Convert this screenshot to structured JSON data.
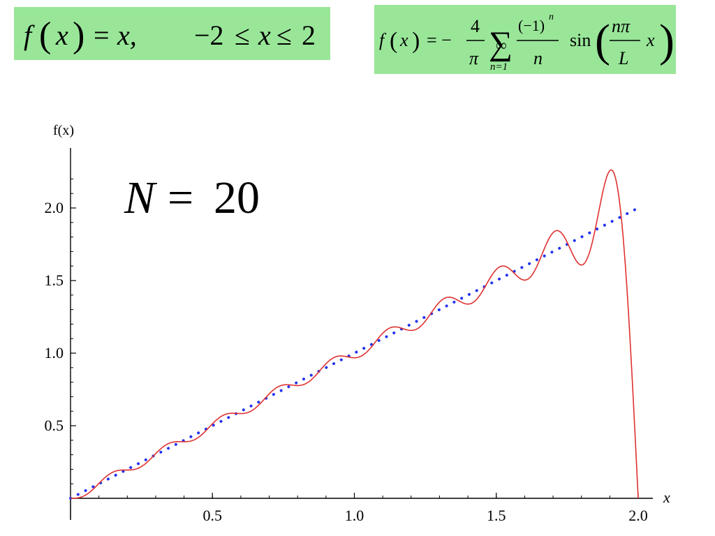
{
  "formula_left": {
    "lhs_fn": "f",
    "lhs_var": "x",
    "eq": "=",
    "rhs": "x,",
    "domain_left": "−2",
    "leq1": "≤",
    "domain_var": "x",
    "leq2": "≤",
    "domain_right": "2",
    "bg_color": "#99e699"
  },
  "formula_right": {
    "fn": "f",
    "var": "x",
    "eq": "= −",
    "coef_num": "4",
    "coef_den": "π",
    "sum_sym": "∑",
    "sum_upper": "∞",
    "sum_lower": "n=1",
    "term_num": "(−1)",
    "term_num_exp": "n",
    "term_den": "n",
    "sin": "sin",
    "arg_num": "nπ",
    "arg_den": "L",
    "arg_var": "x",
    "bg_color": "#99e699"
  },
  "annotation": {
    "lhs": "N",
    "eq": "=",
    "value": "20"
  },
  "chart_data": {
    "type": "line",
    "title": "",
    "xlabel": "x",
    "ylabel": "f(x)",
    "xlim": [
      0,
      2.0
    ],
    "ylim": [
      0,
      2.3
    ],
    "x_ticks": [
      0.5,
      1.0,
      1.5,
      2.0
    ],
    "x_tick_labels": [
      "0.5",
      "1.0",
      "1.5",
      "2.0"
    ],
    "y_ticks": [
      0.5,
      1.0,
      1.5,
      2.0
    ],
    "y_tick_labels": [
      "0.5",
      "1.0",
      "1.5",
      "2.0"
    ],
    "grid": false,
    "series": [
      {
        "name": "",
        "kind": "exact f(x)=x",
        "style": "dotted",
        "color": "#2233ee",
        "x": [
          0,
          2.0
        ],
        "y": [
          0,
          2.0
        ]
      },
      {
        "name": "",
        "kind": "Fourier sine series partial sum",
        "style": "solid",
        "color": "#e03030",
        "terms": 20,
        "L": 2,
        "x": [
          0.0,
          0.1,
          0.2,
          0.3,
          0.4,
          0.5,
          0.6,
          0.7,
          0.8,
          0.9,
          1.0,
          1.1,
          1.2,
          1.3,
          1.4,
          1.5,
          1.6,
          1.7,
          1.8,
          1.9,
          2.0
        ],
        "y": [
          0.0,
          0.12,
          0.19,
          0.32,
          0.39,
          0.5,
          0.59,
          0.7,
          0.78,
          0.9,
          0.98,
          1.1,
          1.17,
          1.3,
          1.35,
          1.53,
          1.52,
          1.8,
          1.6,
          2.25,
          0.0
        ]
      }
    ]
  }
}
